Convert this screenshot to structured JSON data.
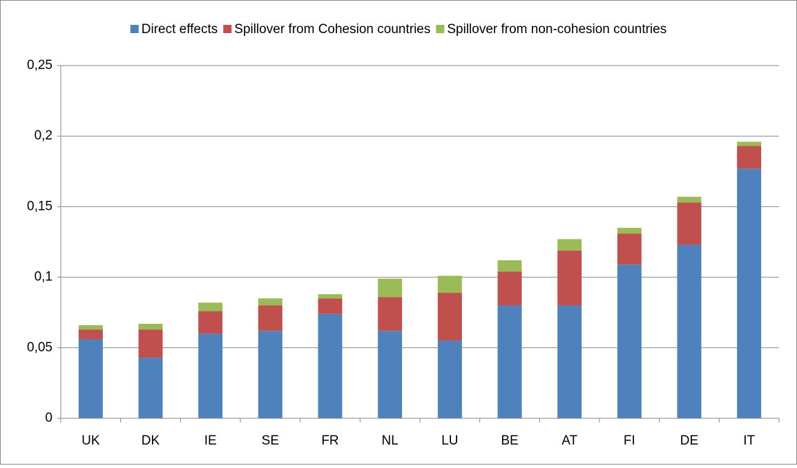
{
  "chart_data": {
    "type": "stacked_bar",
    "categories": [
      "UK",
      "DK",
      "IE",
      "SE",
      "FR",
      "NL",
      "LU",
      "BE",
      "AT",
      "FI",
      "DE",
      "IT"
    ],
    "series": [
      {
        "name": "Direct effects",
        "color": "#4f81bd",
        "values": [
          0.056,
          0.043,
          0.06,
          0.062,
          0.074,
          0.062,
          0.055,
          0.08,
          0.08,
          0.109,
          0.123,
          0.177
        ]
      },
      {
        "name": "Spillover from Cohesion countries",
        "color": "#c0504d",
        "values": [
          0.007,
          0.02,
          0.016,
          0.018,
          0.011,
          0.024,
          0.034,
          0.024,
          0.039,
          0.022,
          0.03,
          0.016
        ]
      },
      {
        "name": "Spillover from non-cohesion countries",
        "color": "#9bbb59",
        "values": [
          0.003,
          0.004,
          0.006,
          0.005,
          0.003,
          0.013,
          0.012,
          0.008,
          0.008,
          0.004,
          0.004,
          0.003
        ]
      }
    ],
    "ylim": [
      0,
      0.25
    ],
    "yticks": [
      0,
      {
        "value": 0.05,
        "label": "0,05"
      },
      {
        "value": 0.1,
        "label": "0,1"
      },
      {
        "value": 0.15,
        "label": "0,15"
      },
      {
        "value": 0.2,
        "label": "0,2"
      },
      {
        "value": 0.25,
        "label": "0,25"
      }
    ],
    "grid": true,
    "legend": "top"
  }
}
